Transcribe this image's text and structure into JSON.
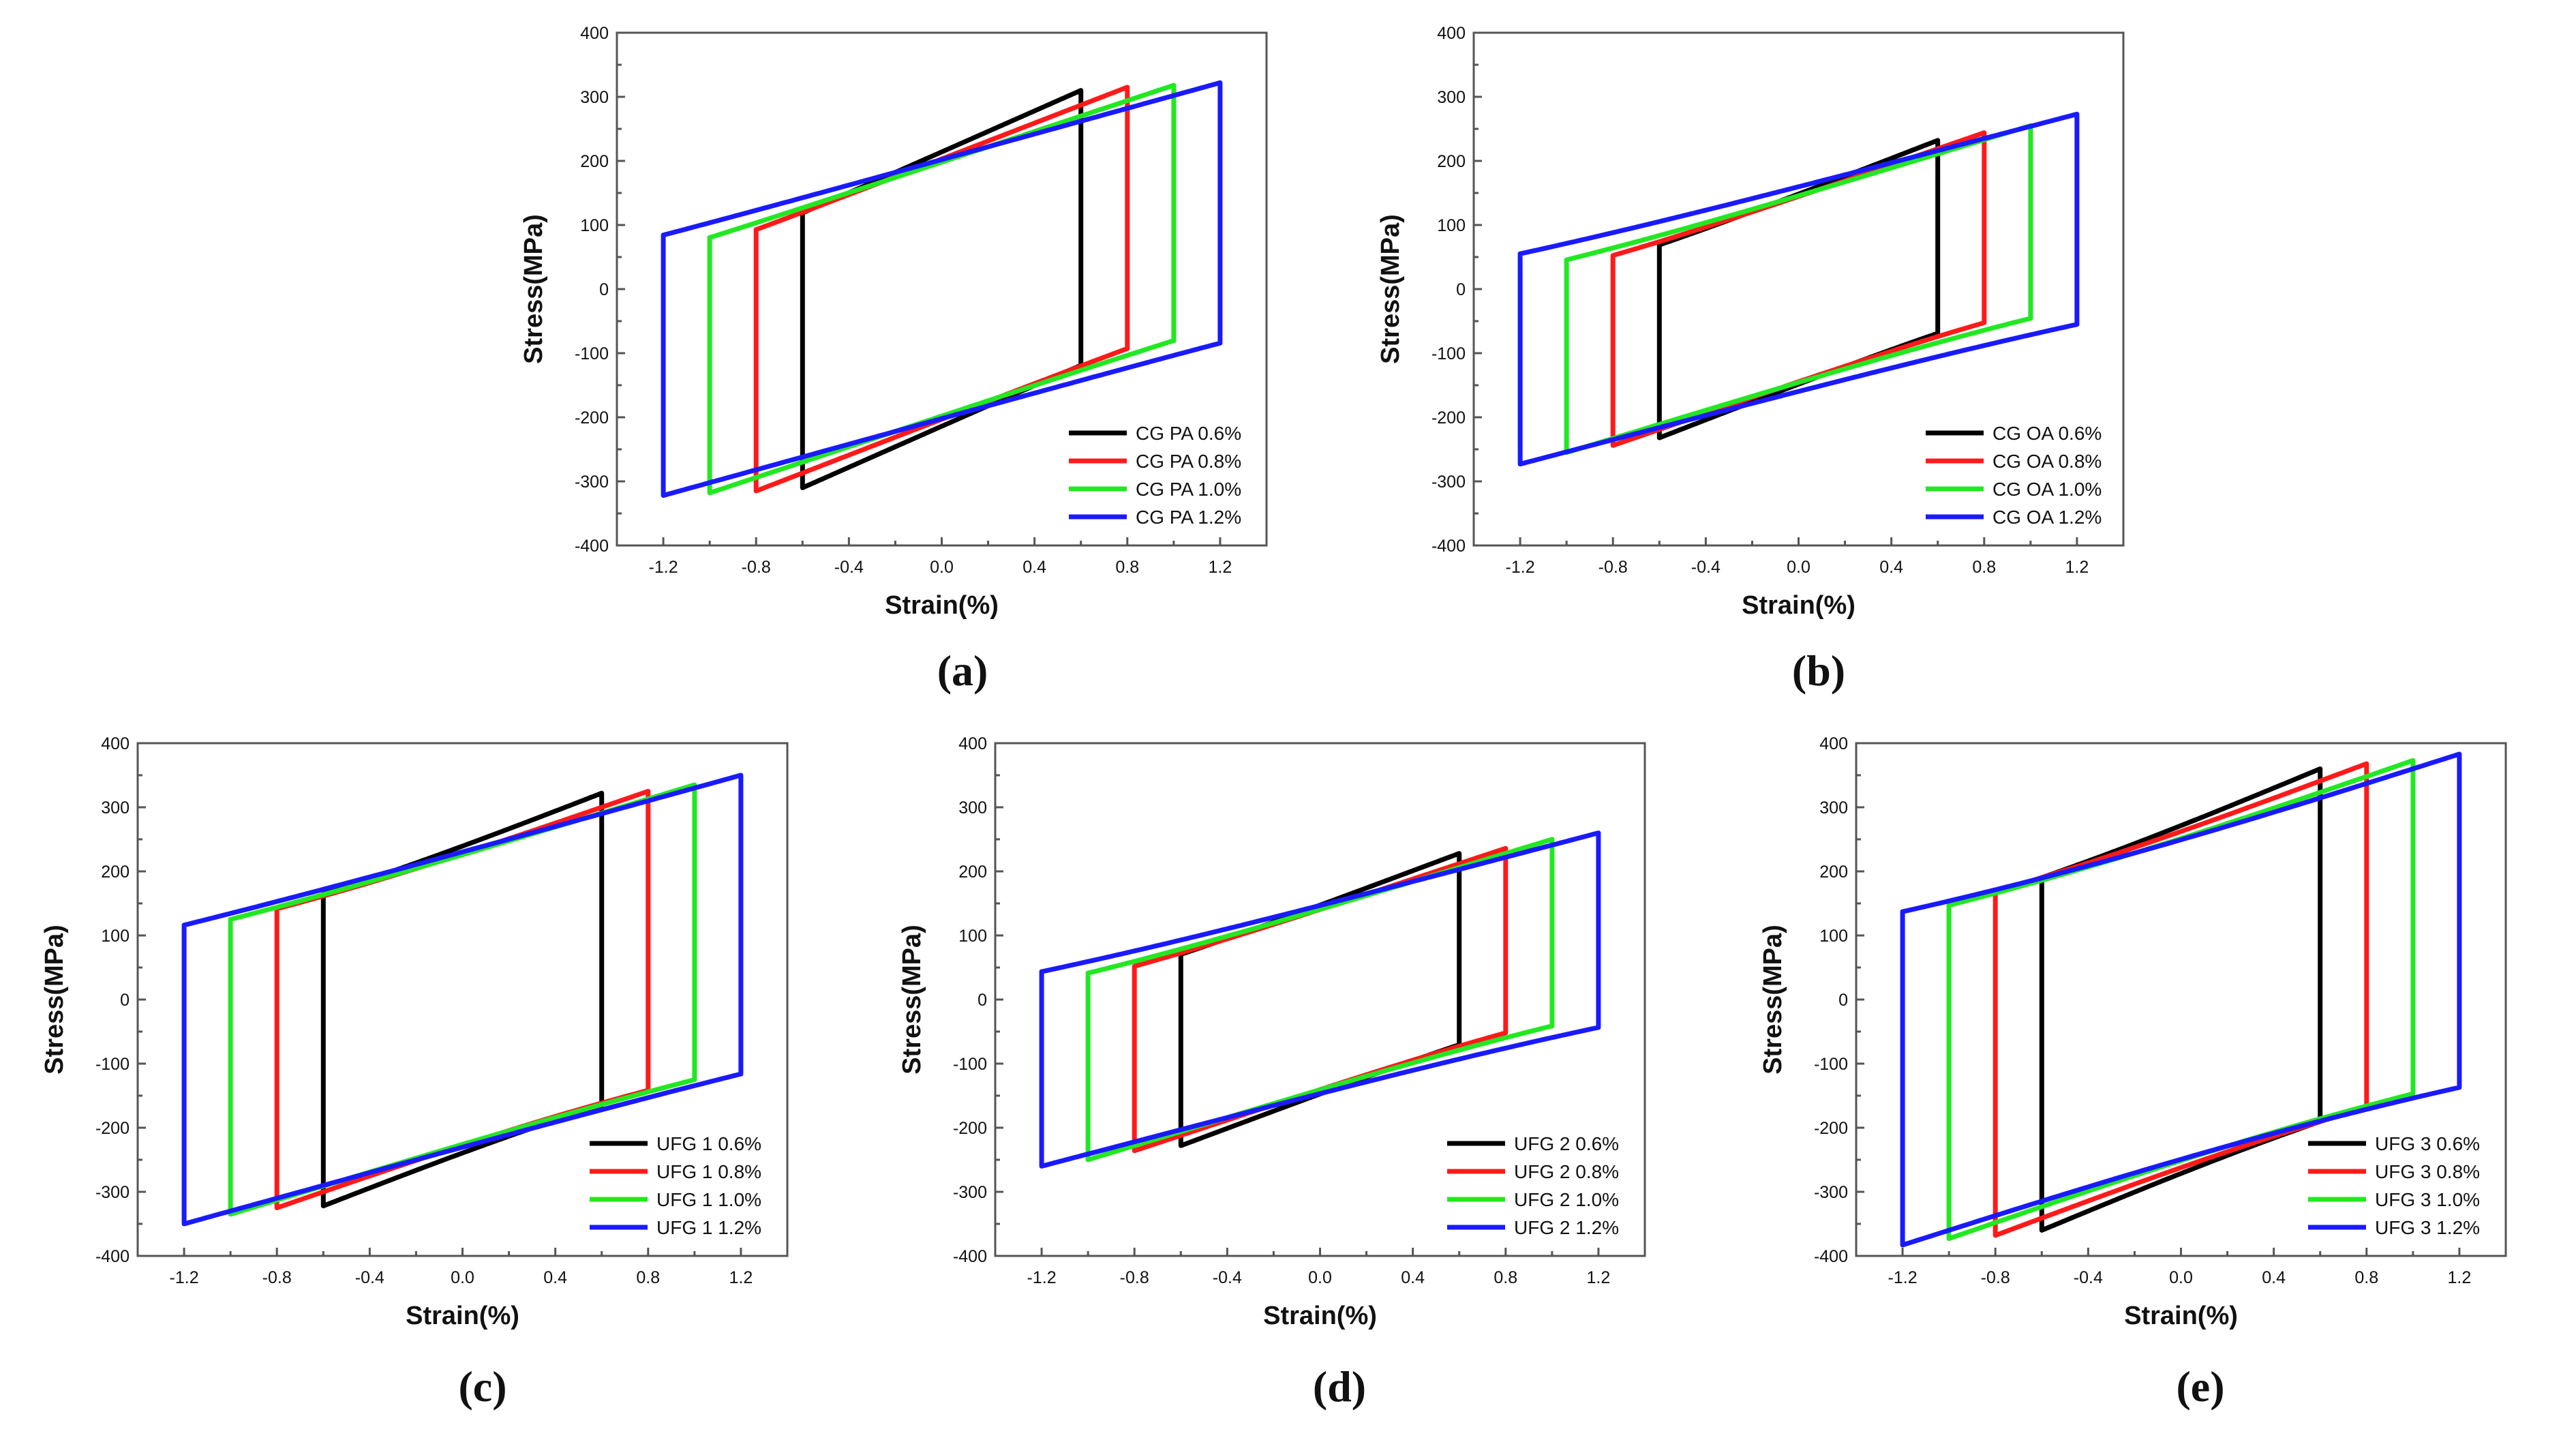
{
  "colors": {
    "black": "#000000",
    "red": "#ff1a1a",
    "green": "#22e822",
    "blue": "#1a1aff"
  },
  "chart_data": [
    {
      "panel_label": "(a)",
      "type": "line",
      "title": "",
      "xlabel": "Strain(%)",
      "ylabel": "Stress(MPa)",
      "xlim": [
        -1.4,
        1.4
      ],
      "ylim": [
        -400,
        400
      ],
      "xticks": [
        "-1.2",
        "-0.8",
        "-0.4",
        "0.0",
        "0.4",
        "0.8",
        "1.2"
      ],
      "yticks": [
        "-400",
        "-300",
        "-200",
        "-100",
        "0",
        "100",
        "200",
        "300",
        "400"
      ],
      "legend_position": "bottom-right",
      "series": [
        {
          "name": "CG PA 0.6%",
          "color": "black",
          "strain_amplitude": 0.6,
          "peak_stress": 310,
          "elastic_modulus": 160,
          "shape": 4
        },
        {
          "name": "CG PA 0.8%",
          "color": "red",
          "strain_amplitude": 0.8,
          "peak_stress": 315,
          "elastic_modulus": 140,
          "shape": 4
        },
        {
          "name": "CG PA 1.0%",
          "color": "green",
          "strain_amplitude": 1.0,
          "peak_stress": 318,
          "elastic_modulus": 120,
          "shape": 4
        },
        {
          "name": "CG PA 1.2%",
          "color": "blue",
          "strain_amplitude": 1.2,
          "peak_stress": 322,
          "elastic_modulus": 100,
          "shape": 4
        }
      ]
    },
    {
      "panel_label": "(b)",
      "type": "line",
      "title": "",
      "xlabel": "Strain(%)",
      "ylabel": "Stress(MPa)",
      "xlim": [
        -1.4,
        1.4
      ],
      "ylim": [
        -400,
        400
      ],
      "xticks": [
        "-1.2",
        "-0.8",
        "-0.4",
        "0.0",
        "0.4",
        "0.8",
        "1.2"
      ],
      "yticks": [
        "-400",
        "-300",
        "-200",
        "-100",
        "0",
        "100",
        "200",
        "300",
        "400"
      ],
      "legend_position": "bottom-right",
      "series": [
        {
          "name": "CG OA 0.6%",
          "color": "black",
          "strain_amplitude": 0.6,
          "peak_stress": 232,
          "elastic_modulus": 140,
          "shape": 3
        },
        {
          "name": "CG OA 0.8%",
          "color": "red",
          "strain_amplitude": 0.8,
          "peak_stress": 244,
          "elastic_modulus": 125,
          "shape": 3
        },
        {
          "name": "CG OA 1.0%",
          "color": "green",
          "strain_amplitude": 1.0,
          "peak_stress": 255,
          "elastic_modulus": 110,
          "shape": 3
        },
        {
          "name": "CG OA 1.2%",
          "color": "blue",
          "strain_amplitude": 1.2,
          "peak_stress": 273,
          "elastic_modulus": 95,
          "shape": 3
        }
      ]
    },
    {
      "panel_label": "(c)",
      "type": "line",
      "title": "",
      "xlabel": "Strain(%)",
      "ylabel": "Stress(MPa)",
      "xlim": [
        -1.4,
        1.4
      ],
      "ylim": [
        -400,
        400
      ],
      "xticks": [
        "-1.2",
        "-0.8",
        "-0.4",
        "0.0",
        "0.4",
        "0.8",
        "1.2"
      ],
      "yticks": [
        "-400",
        "-300",
        "-200",
        "-100",
        "0",
        "100",
        "200",
        "300",
        "400"
      ],
      "legend_position": "bottom-right",
      "series": [
        {
          "name": "UFG 1 0.6%",
          "color": "black",
          "strain_amplitude": 0.6,
          "peak_stress": 322,
          "elastic_modulus": 140,
          "shape": 2
        },
        {
          "name": "UFG 1 0.8%",
          "color": "red",
          "strain_amplitude": 0.8,
          "peak_stress": 325,
          "elastic_modulus": 125,
          "shape": 2
        },
        {
          "name": "UFG 1 1.0%",
          "color": "green",
          "strain_amplitude": 1.0,
          "peak_stress": 335,
          "elastic_modulus": 110,
          "shape": 2.5
        },
        {
          "name": "UFG 1 1.2%",
          "color": "blue",
          "strain_amplitude": 1.2,
          "peak_stress": 350,
          "elastic_modulus": 100,
          "shape": 3
        }
      ]
    },
    {
      "panel_label": "(d)",
      "type": "line",
      "title": "",
      "xlabel": "Strain(%)",
      "ylabel": "Stress(MPa)",
      "xlim": [
        -1.4,
        1.4
      ],
      "ylim": [
        -400,
        400
      ],
      "xticks": [
        "-1.2",
        "-0.8",
        "-0.4",
        "0.0",
        "0.4",
        "0.8",
        "1.2"
      ],
      "yticks": [
        "-400",
        "-300",
        "-200",
        "-100",
        "0",
        "100",
        "200",
        "300",
        "400"
      ],
      "legend_position": "bottom-right",
      "series": [
        {
          "name": "UFG 2 0.6%",
          "color": "black",
          "strain_amplitude": 0.6,
          "peak_stress": 228,
          "elastic_modulus": 135,
          "shape": 3
        },
        {
          "name": "UFG 2 0.8%",
          "color": "red",
          "strain_amplitude": 0.8,
          "peak_stress": 236,
          "elastic_modulus": 120,
          "shape": 3
        },
        {
          "name": "UFG 2 1.0%",
          "color": "green",
          "strain_amplitude": 1.0,
          "peak_stress": 250,
          "elastic_modulus": 110,
          "shape": 3
        },
        {
          "name": "UFG 2 1.2%",
          "color": "blue",
          "strain_amplitude": 1.2,
          "peak_stress": 260,
          "elastic_modulus": 95,
          "shape": 3
        }
      ]
    },
    {
      "panel_label": "(e)",
      "type": "line",
      "title": "",
      "xlabel": "Strain(%)",
      "ylabel": "Stress(MPa)",
      "xlim": [
        -1.4,
        1.4
      ],
      "ylim": [
        -400,
        400
      ],
      "xticks": [
        "-1.2",
        "-0.8",
        "-0.4",
        "0.0",
        "0.4",
        "0.8",
        "1.2"
      ],
      "yticks": [
        "-400",
        "-300",
        "-200",
        "-100",
        "0",
        "100",
        "200",
        "300",
        "400"
      ],
      "legend_position": "bottom-right",
      "series": [
        {
          "name": "UFG 3 0.6%",
          "color": "black",
          "strain_amplitude": 0.6,
          "peak_stress": 360,
          "elastic_modulus": 150,
          "shape": 2
        },
        {
          "name": "UFG 3 0.8%",
          "color": "red",
          "strain_amplitude": 0.8,
          "peak_stress": 368,
          "elastic_modulus": 135,
          "shape": 2
        },
        {
          "name": "UFG 3 1.0%",
          "color": "green",
          "strain_amplitude": 1.0,
          "peak_stress": 373,
          "elastic_modulus": 125,
          "shape": 2
        },
        {
          "name": "UFG 3 1.2%",
          "color": "blue",
          "strain_amplitude": 1.2,
          "peak_stress": 383,
          "elastic_modulus": 115,
          "shape": 2
        }
      ]
    }
  ]
}
